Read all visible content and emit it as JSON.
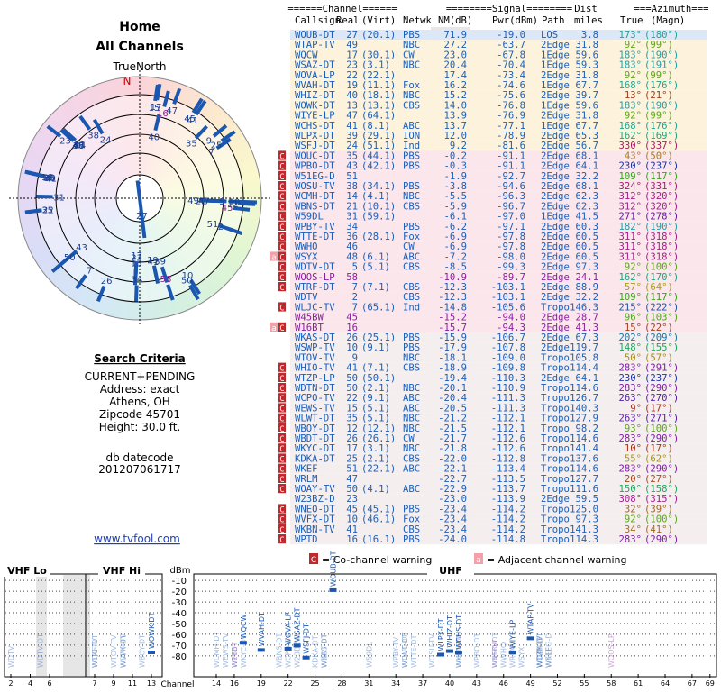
{
  "left": {
    "title": "Home",
    "subtitle": "All Channels",
    "north_label": "TrueNorth",
    "north_letter": "N",
    "criteria_title": "Search Criteria",
    "criteria": [
      "CURRENT+PENDING",
      "Address: exact",
      "Athens, OH",
      "Zipcode 45701",
      "Height: 30.0 ft."
    ],
    "datecode_label": "db datecode",
    "datecode": "201207061717",
    "link": "www.tvfool.com"
  },
  "table": {
    "groups": [
      "======Channel======",
      "========Signal========",
      "Dist",
      "===Azimuth==="
    ],
    "columns": [
      "Callsign",
      "Real",
      "(Virt)",
      "Netwk",
      "NM(dB)",
      "Pwr(dBm)",
      "Path",
      "miles",
      "True",
      "(Magn)"
    ],
    "rows": [
      {
        "cells": [
          "WOUB-DT",
          "27",
          "(20.1)",
          "PBS",
          "71.9",
          "-19.0",
          "LOS",
          "3.8",
          "173°",
          "(180°)"
        ]
      },
      {
        "cells": [
          "WTAP-TV",
          "49",
          "",
          "NBC",
          "27.2",
          "-63.7",
          "2Edge",
          "31.8",
          "92°",
          "(99°)"
        ]
      },
      {
        "cells": [
          "WQCW",
          "17",
          "(30.1)",
          "CW",
          "23.0",
          "-67.8",
          "1Edge",
          "59.6",
          "183°",
          "(190°)"
        ]
      },
      {
        "cells": [
          "WSAZ-DT",
          "23",
          "(3.1)",
          "NBC",
          "20.4",
          "-70.4",
          "1Edge",
          "59.3",
          "183°",
          "(191°)"
        ]
      },
      {
        "cells": [
          "WOVA-LP",
          "22",
          "(22.1)",
          "",
          "17.4",
          "-73.4",
          "2Edge",
          "31.8",
          "92°",
          "(99°)"
        ]
      },
      {
        "cells": [
          "WVAH-DT",
          "19",
          "(11.1)",
          "Fox",
          "16.2",
          "-74.6",
          "1Edge",
          "67.7",
          "168°",
          "(176°)"
        ]
      },
      {
        "cells": [
          "WHIZ-DT",
          "40",
          "(18.1)",
          "NBC",
          "15.2",
          "-75.6",
          "2Edge",
          "39.7",
          "13°",
          "(21°)"
        ]
      },
      {
        "cells": [
          "WOWK-DT",
          "13",
          "(13.1)",
          "CBS",
          "14.0",
          "-76.8",
          "1Edge",
          "59.6",
          "183°",
          "(190°)"
        ]
      },
      {
        "cells": [
          "WIYE-LP",
          "47",
          "(64.1)",
          "",
          "13.9",
          "-76.9",
          "2Edge",
          "31.8",
          "92°",
          "(99°)"
        ]
      },
      {
        "cells": [
          "WCHS-DT",
          "41",
          "(8.1)",
          "ABC",
          "13.7",
          "-77.1",
          "1Edge",
          "67.7",
          "168°",
          "(176°)"
        ]
      },
      {
        "cells": [
          "WLPX-DT",
          "39",
          "(29.1)",
          "ION",
          "12.0",
          "-78.9",
          "2Edge",
          "65.3",
          "162°",
          "(169°)"
        ]
      },
      {
        "cells": [
          "WSFJ-DT",
          "24",
          "(51.1)",
          "Ind",
          "9.2",
          "-81.6",
          "2Edge",
          "56.7",
          "330°",
          "(337°)"
        ]
      },
      {
        "flags": [
          "C"
        ],
        "cells": [
          "WOUC-DT",
          "35",
          "(44.1)",
          "PBS",
          "-0.2",
          "-91.1",
          "2Edge",
          "68.1",
          "43°",
          "(50°)"
        ]
      },
      {
        "flags": [
          "C"
        ],
        "cells": [
          "WPBO-DT",
          "43",
          "(42.1)",
          "PBS",
          "-0.3",
          "-91.1",
          "2Edge",
          "64.1",
          "230°",
          "(237°)"
        ]
      },
      {
        "flags": [
          "C"
        ],
        "cells": [
          "W51EG-D",
          "51",
          "",
          "",
          "-1.9",
          "-92.7",
          "2Edge",
          "32.2",
          "109°",
          "(117°)"
        ]
      },
      {
        "flags": [
          "C"
        ],
        "cells": [
          "WOSU-TV",
          "38",
          "(34.1)",
          "PBS",
          "-3.8",
          "-94.6",
          "2Edge",
          "68.1",
          "324°",
          "(331°)"
        ]
      },
      {
        "flags": [
          "C"
        ],
        "cells": [
          "WCMH-DT",
          "14",
          "(4.1)",
          "NBC",
          "-5.5",
          "-96.3",
          "2Edge",
          "62.3",
          "312°",
          "(320°)"
        ]
      },
      {
        "flags": [
          "C"
        ],
        "cells": [
          "WBNS-DT",
          "21",
          "(10.1)",
          "CBS",
          "-5.9",
          "-96.7",
          "2Edge",
          "62.3",
          "312°",
          "(320°)"
        ]
      },
      {
        "flags": [
          "C"
        ],
        "cells": [
          "W59DL",
          "31",
          "(59.1)",
          "",
          "-6.1",
          "-97.0",
          "1Edge",
          "41.5",
          "271°",
          "(278°)"
        ]
      },
      {
        "flags": [
          "C"
        ],
        "cells": [
          "WPBY-TV",
          "34",
          "",
          "PBS",
          "-6.2",
          "-97.1",
          "2Edge",
          "60.3",
          "182°",
          "(190°)"
        ]
      },
      {
        "flags": [
          "C"
        ],
        "cells": [
          "WTTE-DT",
          "36",
          "(28.1)",
          "Fox",
          "-6.9",
          "-97.8",
          "2Edge",
          "60.5",
          "311°",
          "(318°)"
        ]
      },
      {
        "flags": [
          "C"
        ],
        "cells": [
          "WWHO",
          "46",
          "",
          "CW",
          "-6.9",
          "-97.8",
          "2Edge",
          "60.5",
          "311°",
          "(318°)"
        ]
      },
      {
        "flags": [
          "a",
          "C"
        ],
        "cells": [
          "WSYX",
          "48",
          "(6.1)",
          "ABC",
          "-7.2",
          "-98.0",
          "2Edge",
          "60.5",
          "311°",
          "(318°)"
        ]
      },
      {
        "flags": [
          "C"
        ],
        "cells": [
          "WDTV-DT",
          "5",
          "(5.1)",
          "CBS",
          "-8.5",
          "-99.3",
          "2Edge",
          "97.3",
          "92°",
          "(100°)"
        ]
      },
      {
        "flags": [
          "C"
        ],
        "color": "#8a1fa0",
        "cells": [
          "WOOS-LP",
          "58",
          "",
          "",
          "-10.9",
          "-89.7",
          "2Edge",
          "24.1",
          "162°",
          "(170°)"
        ]
      },
      {
        "flags": [
          "C"
        ],
        "cells": [
          "WTRF-DT",
          "7",
          "(7.1)",
          "CBS",
          "-12.3",
          "-103.1",
          "2Edge",
          "88.9",
          "57°",
          "(64°)"
        ]
      },
      {
        "cells": [
          "WDTV",
          "2",
          "",
          "CBS",
          "-12.3",
          "-103.1",
          "2Edge",
          "32.2",
          "109°",
          "(117°)"
        ]
      },
      {
        "flags": [
          "C"
        ],
        "cells": [
          "WLJC-TV",
          "7",
          "(65.1)",
          "Ind",
          "-14.8",
          "-105.6",
          "Tropo",
          "146.3",
          "215°",
          "(222°)"
        ]
      },
      {
        "color": "#8a1fa0",
        "cells": [
          "W45BW",
          "45",
          "",
          "",
          "-15.2",
          "-94.0",
          "2Edge",
          "28.7",
          "96°",
          "(103°)"
        ]
      },
      {
        "flags": [
          "a",
          "C"
        ],
        "color": "#8a1fa0",
        "cells": [
          "W16BT",
          "16",
          "",
          "",
          "-15.7",
          "-94.3",
          "2Edge",
          "41.3",
          "15°",
          "(22°)"
        ]
      },
      {
        "cells": [
          "WKAS-DT",
          "26",
          "(25.1)",
          "PBS",
          "-15.9",
          "-106.7",
          "2Edge",
          "67.3",
          "202°",
          "(209°)"
        ]
      },
      {
        "cells": [
          "WSWP-TV",
          "10",
          "(9.1)",
          "PBS",
          "-17.9",
          "-107.8",
          "2Edge",
          "119.7",
          "148°",
          "(155°)"
        ]
      },
      {
        "cells": [
          "WTOV-TV",
          "9",
          "",
          "NBC",
          "-18.1",
          "-109.0",
          "Tropo",
          "105.8",
          "50°",
          "(57°)"
        ]
      },
      {
        "flags": [
          "C"
        ],
        "cells": [
          "WHIO-TV",
          "41",
          "(7.1)",
          "CBS",
          "-18.9",
          "-109.8",
          "Tropo",
          "114.4",
          "283°",
          "(291°)"
        ]
      },
      {
        "flags": [
          "C"
        ],
        "cells": [
          "WTZP-LP",
          "50",
          "(50.1)",
          "",
          "-19.4",
          "-110.3",
          "2Edge",
          "64.1",
          "230°",
          "(237°)"
        ]
      },
      {
        "flags": [
          "C"
        ],
        "cells": [
          "WDTN-DT",
          "50",
          "(2.1)",
          "NBC",
          "-20.1",
          "-110.9",
          "Tropo",
          "114.6",
          "283°",
          "(290°)"
        ]
      },
      {
        "flags": [
          "C"
        ],
        "cells": [
          "WCPO-TV",
          "22",
          "(9.1)",
          "ABC",
          "-20.4",
          "-111.3",
          "Tropo",
          "126.7",
          "263°",
          "(270°)"
        ]
      },
      {
        "flags": [
          "C"
        ],
        "cells": [
          "WEWS-TV",
          "15",
          "(5.1)",
          "ABC",
          "-20.5",
          "-111.3",
          "Tropo",
          "140.3",
          "9°",
          "(17°)"
        ]
      },
      {
        "flags": [
          "C"
        ],
        "cells": [
          "WLWT-DT",
          "35",
          "(5.1)",
          "NBC",
          "-21.2",
          "-112.1",
          "Tropo",
          "127.9",
          "263°",
          "(271°)"
        ]
      },
      {
        "flags": [
          "C"
        ],
        "cells": [
          "WBOY-DT",
          "12",
          "(12.1)",
          "NBC",
          "-21.5",
          "-112.1",
          "Tropo",
          "98.2",
          "93°",
          "(100°)"
        ]
      },
      {
        "flags": [
          "C"
        ],
        "cells": [
          "WBDT-DT",
          "26",
          "(26.1)",
          "CW",
          "-21.7",
          "-112.6",
          "Tropo",
          "114.6",
          "283°",
          "(290°)"
        ]
      },
      {
        "flags": [
          "C"
        ],
        "cells": [
          "WKYC-DT",
          "17",
          "(3.1)",
          "NBC",
          "-21.8",
          "-112.6",
          "Tropo",
          "141.4",
          "10°",
          "(17°)"
        ]
      },
      {
        "flags": [
          "C"
        ],
        "cells": [
          "KDKA-DT",
          "25",
          "(2.1)",
          "CBS",
          "-22.0",
          "-112.8",
          "Tropo",
          "137.6",
          "55°",
          "(62°)"
        ]
      },
      {
        "flags": [
          "C"
        ],
        "cells": [
          "WKEF",
          "51",
          "(22.1)",
          "ABC",
          "-22.1",
          "-113.4",
          "Tropo",
          "114.6",
          "283°",
          "(290°)"
        ]
      },
      {
        "flags": [
          "C"
        ],
        "cells": [
          "WRLM",
          "47",
          "",
          "",
          "-22.7",
          "-113.5",
          "Tropo",
          "127.7",
          "20°",
          "(27°)"
        ]
      },
      {
        "flags": [
          "C"
        ],
        "cells": [
          "WOAY-TV",
          "50",
          "(4.1)",
          "ABC",
          "-22.9",
          "-113.7",
          "Tropo",
          "111.6",
          "150°",
          "(158°)"
        ]
      },
      {
        "cells": [
          "W23BZ-D",
          "23",
          "",
          "",
          "-23.0",
          "-113.9",
          "2Edge",
          "59.5",
          "308°",
          "(315°)"
        ]
      },
      {
        "flags": [
          "C"
        ],
        "cells": [
          "WNEO-DT",
          "45",
          "(45.1)",
          "PBS",
          "-23.4",
          "-114.2",
          "Tropo",
          "125.0",
          "32°",
          "(39°)"
        ]
      },
      {
        "flags": [
          "C"
        ],
        "cells": [
          "WVFX-DT",
          "10",
          "(46.1)",
          "Fox",
          "-23.4",
          "-114.2",
          "Tropo",
          "97.3",
          "92°",
          "(100°)"
        ]
      },
      {
        "flags": [
          "C"
        ],
        "cells": [
          "WKBN-TV",
          "41",
          "",
          "CBS",
          "-23.4",
          "-114.2",
          "Tropo",
          "141.3",
          "34°",
          "(41°)"
        ]
      },
      {
        "flags": [
          "C"
        ],
        "cells": [
          "WPTD",
          "16",
          "(16.1)",
          "PBS",
          "-24.0",
          "-114.8",
          "Tropo",
          "114.3",
          "283°",
          "(290°)"
        ]
      }
    ]
  },
  "spectrum": {
    "bands": [
      "VHF Lo",
      "VHF Hi",
      "UHF"
    ],
    "y_label": "dBm",
    "x_label": "Channel",
    "ylim": [
      -4,
      -86
    ],
    "yticks": [
      -10,
      -20,
      -30,
      -40,
      -50,
      -60,
      -70,
      -80
    ],
    "xticks": [
      2,
      4,
      6,
      7,
      9,
      11,
      13,
      14,
      16,
      19,
      22,
      25,
      28,
      31,
      34,
      37,
      40,
      43,
      46,
      49,
      52,
      55,
      58,
      61,
      64,
      67,
      69
    ],
    "legend": [
      {
        "symbol": "C",
        "text": "= Co-channel warning"
      },
      {
        "symbol": "a",
        "text": "= Adjacent channel warning"
      }
    ]
  }
}
